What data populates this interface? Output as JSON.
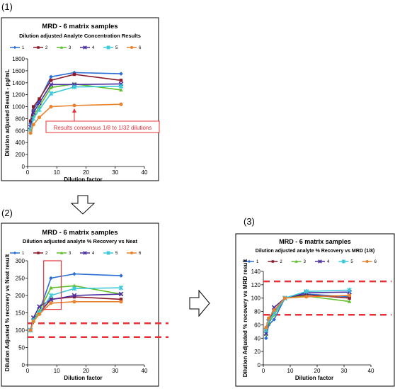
{
  "panels": {
    "p1": "(1)",
    "p2": "(2)",
    "p3": "(3)"
  },
  "colors": {
    "s1": "#2b6fd6",
    "s2": "#8b1a2b",
    "s3": "#5fbf2a",
    "s4": "#4b2fa0",
    "s5": "#3bc9d8",
    "s6": "#e8822c",
    "annotation": "#e8323a"
  },
  "chart_data": [
    {
      "type": "line",
      "title": "MRD - 6 matrix samples",
      "subtitle": "Dilution adjusted Analyte Concentration Results",
      "xlabel": "Dilution factor",
      "ylabel": "Dilution adjusted Result - pg/mL",
      "xlim": [
        0,
        40
      ],
      "ylim": [
        0,
        1800
      ],
      "xticks": [
        "0",
        "10",
        "20",
        "30",
        "40"
      ],
      "yticks": [
        "0",
        "200",
        "400",
        "600",
        "800",
        "1000",
        "1200",
        "1400",
        "1600",
        "1800"
      ],
      "x": [
        1,
        2,
        4,
        8,
        16,
        32
      ],
      "series": [
        {
          "name": "1",
          "values": [
            720,
            950,
            1110,
            1500,
            1570,
            1550
          ]
        },
        {
          "name": "2",
          "values": [
            760,
            1000,
            1130,
            1440,
            1540,
            1440
          ]
        },
        {
          "name": "3",
          "values": [
            640,
            840,
            1000,
            1320,
            1380,
            1280
          ]
        },
        {
          "name": "4",
          "values": [
            660,
            900,
            1060,
            1370,
            1370,
            1380
          ]
        },
        {
          "name": "5",
          "values": [
            620,
            800,
            950,
            1220,
            1330,
            1340
          ]
        },
        {
          "name": "6",
          "values": [
            560,
            700,
            820,
            1000,
            1020,
            1040
          ]
        }
      ],
      "annotation": "Results consensus 1/8 to 1/32 dilutions",
      "grid": false,
      "legend": "top"
    },
    {
      "type": "line",
      "title": "MRD - 6 matrix samples",
      "subtitle": "Dilution adjusted analyte % Recovery vs Neat",
      "xlabel": "Dilution factor",
      "ylabel": "Dilution Adjusted % recovery vs Neat result",
      "xlim": [
        0,
        40
      ],
      "ylim": [
        0,
        300
      ],
      "xticks": [
        "0",
        "10",
        "20",
        "30",
        "40"
      ],
      "yticks": [
        "0",
        "50",
        "100",
        "150",
        "200",
        "250",
        "300"
      ],
      "x": [
        1,
        2,
        4,
        8,
        16,
        32
      ],
      "series": [
        {
          "name": "1",
          "values": [
            100,
            132,
            154,
            250,
            262,
            257
          ]
        },
        {
          "name": "2",
          "values": [
            100,
            131,
            149,
            189,
            196,
            189
          ]
        },
        {
          "name": "3",
          "values": [
            100,
            131,
            156,
            222,
            228,
            204
          ]
        },
        {
          "name": "4",
          "values": [
            100,
            136,
            168,
            188,
            200,
            204
          ]
        },
        {
          "name": "5",
          "values": [
            100,
            128,
            150,
            200,
            220,
            222
          ]
        },
        {
          "name": "6",
          "values": [
            100,
            125,
            146,
            178,
            182,
            182
          ]
        }
      ],
      "reference_lines": [
        120,
        80
      ],
      "grid": false,
      "legend": "top"
    },
    {
      "type": "line",
      "title": "MRD - 6 matrix samples",
      "subtitle": "Dilution adjusted analyte % Recovery vs MRD (1/8)",
      "xlabel": "Dilution factor",
      "ylabel": "Dilution Adjusted % recovery vs MRD result",
      "xlim": [
        0,
        40
      ],
      "ylim": [
        0,
        140
      ],
      "xticks": [
        "0",
        "10",
        "20",
        "30",
        "40"
      ],
      "yticks": [
        "0",
        "20",
        "40",
        "60",
        "80",
        "100",
        "120",
        "140"
      ],
      "x": [
        1,
        2,
        4,
        8,
        16,
        32
      ],
      "series": [
        {
          "name": "1",
          "values": [
            40,
            60,
            68,
            100,
            106,
            102
          ]
        },
        {
          "name": "2",
          "values": [
            53,
            69,
            78,
            100,
            105,
            100
          ]
        },
        {
          "name": "3",
          "values": [
            46,
            63,
            75,
            100,
            103,
            95
          ]
        },
        {
          "name": "4",
          "values": [
            47,
            65,
            86,
            100,
            108,
            109
          ]
        },
        {
          "name": "5",
          "values": [
            52,
            66,
            77,
            100,
            110,
            112
          ]
        },
        {
          "name": "6",
          "values": [
            56,
            70,
            82,
            100,
            102,
            104
          ]
        }
      ],
      "reference_lines": [
        125,
        75
      ],
      "grid": false,
      "legend": "top"
    }
  ]
}
